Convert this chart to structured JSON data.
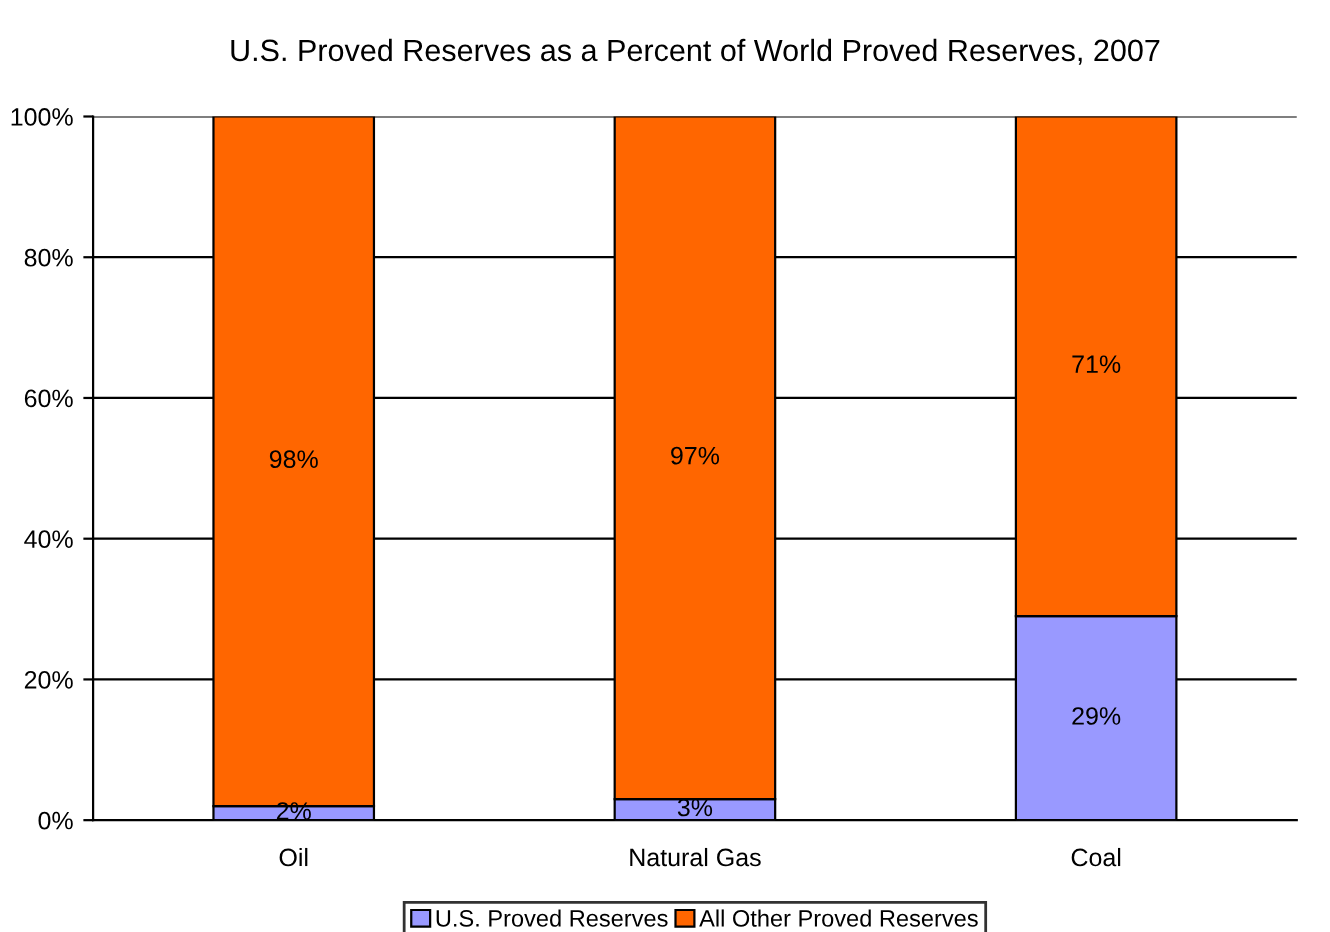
{
  "chart_data": {
    "type": "bar",
    "stacked": true,
    "title": "U.S. Proved Reserves as a Percent of World Proved Reserves, 2007",
    "categories": [
      "Oil",
      "Natural Gas",
      "Coal"
    ],
    "series": [
      {
        "name": "U.S. Proved Reserves",
        "color": "#9999ff",
        "values": [
          2,
          3,
          29
        ],
        "value_labels": [
          "2%",
          "3%",
          "29%"
        ]
      },
      {
        "name": "All Other Proved Reserves",
        "color": "#ff6600",
        "values": [
          98,
          97,
          71
        ],
        "value_labels": [
          "98%",
          "97%",
          "71%"
        ]
      }
    ],
    "ylim": [
      0,
      100
    ],
    "yticks": [
      {
        "value": 0,
        "label": "0%"
      },
      {
        "value": 20,
        "label": "20%"
      },
      {
        "value": 40,
        "label": "40%"
      },
      {
        "value": 60,
        "label": "60%"
      },
      {
        "value": 80,
        "label": "80%"
      },
      {
        "value": 100,
        "label": "100%"
      }
    ],
    "grid": "y",
    "legend": "bottom"
  }
}
